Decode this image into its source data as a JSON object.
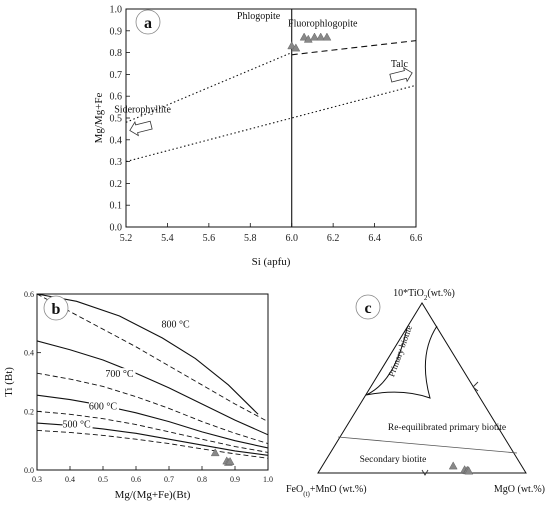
{
  "chart_data": [
    {
      "panel": "a",
      "type": "scatter",
      "xlabel": "Si (apfu)",
      "ylabel": "Mg/Mg+Fe",
      "xlim": [
        5.2,
        6.6
      ],
      "ylim": [
        0.0,
        1.0
      ],
      "xticks": [
        "5.2",
        "5.4",
        "5.6",
        "5.8",
        "6.0",
        "6.2",
        "6.4",
        "6.6"
      ],
      "yticks": [
        "0.0",
        "0.1",
        "0.2",
        "0.3",
        "0.4",
        "0.5",
        "0.6",
        "0.7",
        "0.8",
        "0.9",
        "1.0"
      ],
      "points": [
        {
          "x": 6.0,
          "y": 0.83
        },
        {
          "x": 6.02,
          "y": 0.82
        },
        {
          "x": 6.06,
          "y": 0.87
        },
        {
          "x": 6.08,
          "y": 0.86
        },
        {
          "x": 6.11,
          "y": 0.87
        },
        {
          "x": 6.14,
          "y": 0.87
        },
        {
          "x": 6.17,
          "y": 0.87
        }
      ],
      "lines": [
        {
          "style": "dashed",
          "x": [
            6.0,
            6.6
          ],
          "y": [
            0.79,
            0.855
          ]
        },
        {
          "style": "dotted",
          "x": [
            5.2,
            6.0
          ],
          "y": [
            0.48,
            0.8
          ]
        },
        {
          "style": "dotted",
          "x": [
            5.2,
            6.6
          ],
          "y": [
            0.3,
            0.65
          ]
        },
        {
          "style": "solid",
          "x": [
            6.0,
            6.0
          ],
          "y": [
            0.0,
            1.0
          ]
        }
      ],
      "annotations": [
        {
          "text": "Phlogopite",
          "x": 5.84,
          "y": 0.955
        },
        {
          "text": "Fluorophlogopite",
          "x": 6.15,
          "y": 0.92
        },
        {
          "text": "Talc",
          "x": 6.52,
          "y": 0.735
        },
        {
          "text": "Siderophyllite",
          "x": 5.28,
          "y": 0.525
        }
      ],
      "arrows": [
        {
          "dir": "down-left",
          "x": 5.27,
          "y": 0.455
        },
        {
          "dir": "up-right",
          "x": 6.53,
          "y": 0.695
        }
      ]
    },
    {
      "panel": "b",
      "type": "scatter",
      "xlabel": "Mg/(Mg+Fe)(Bt)",
      "ylabel": "Ti (Bt)",
      "xlim": [
        0.3,
        1.0
      ],
      "ylim": [
        0.0,
        0.6
      ],
      "xticks": [
        "0.3",
        "0.4",
        "0.5",
        "0.6",
        "0.7",
        "0.8",
        "0.9",
        "1.0"
      ],
      "yticks": [
        "0.0",
        "0.2",
        "0.4",
        "0.6"
      ],
      "points": [
        {
          "x": 0.84,
          "y": 0.058
        },
        {
          "x": 0.875,
          "y": 0.03
        },
        {
          "x": 0.88,
          "y": 0.025
        },
        {
          "x": 0.885,
          "y": 0.028
        }
      ],
      "isotherms": [
        {
          "label": "800 °C",
          "style": "solid",
          "x": [
            0.3,
            0.42,
            0.55,
            0.68,
            0.78,
            0.88,
            0.97
          ],
          "y": [
            0.6,
            0.575,
            0.525,
            0.45,
            0.38,
            0.29,
            0.19
          ]
        },
        {
          "label": "",
          "style": "dashed",
          "x": [
            0.3,
            0.4,
            0.5,
            0.6,
            0.7,
            0.8,
            0.9,
            1.0
          ],
          "y": [
            0.6,
            0.54,
            0.48,
            0.42,
            0.355,
            0.29,
            0.225,
            0.165
          ]
        },
        {
          "label": "700 °C",
          "style": "solid",
          "x": [
            0.3,
            0.4,
            0.5,
            0.6,
            0.7,
            0.8,
            0.9,
            1.0
          ],
          "y": [
            0.44,
            0.41,
            0.375,
            0.33,
            0.28,
            0.225,
            0.17,
            0.12
          ]
        },
        {
          "label": "",
          "style": "dashed",
          "x": [
            0.3,
            0.4,
            0.5,
            0.6,
            0.7,
            0.8,
            0.9,
            1.0
          ],
          "y": [
            0.33,
            0.31,
            0.285,
            0.25,
            0.21,
            0.165,
            0.125,
            0.09
          ]
        },
        {
          "label": "600 °C",
          "style": "solid",
          "x": [
            0.3,
            0.4,
            0.5,
            0.6,
            0.7,
            0.8,
            0.9,
            1.0
          ],
          "y": [
            0.255,
            0.24,
            0.22,
            0.195,
            0.165,
            0.13,
            0.1,
            0.075
          ]
        },
        {
          "label": "",
          "style": "dashed",
          "x": [
            0.3,
            0.4,
            0.5,
            0.6,
            0.7,
            0.8,
            0.9,
            1.0
          ],
          "y": [
            0.2,
            0.19,
            0.175,
            0.155,
            0.13,
            0.105,
            0.08,
            0.06
          ]
        },
        {
          "label": "500 °C",
          "style": "solid",
          "x": [
            0.3,
            0.4,
            0.5,
            0.6,
            0.7,
            0.8,
            0.9,
            1.0
          ],
          "y": [
            0.16,
            0.152,
            0.14,
            0.125,
            0.105,
            0.085,
            0.065,
            0.05
          ]
        },
        {
          "label": "",
          "style": "dashed",
          "x": [
            0.3,
            0.4,
            0.5,
            0.6,
            0.7,
            0.8,
            0.9,
            1.0
          ],
          "y": [
            0.135,
            0.128,
            0.118,
            0.105,
            0.09,
            0.072,
            0.055,
            0.04
          ]
        }
      ],
      "isotherm_label_positions": [
        {
          "label": "800 °C",
          "x": 0.72,
          "y": 0.49
        },
        {
          "label": "700 °C",
          "x": 0.55,
          "y": 0.32
        },
        {
          "label": "600 °C",
          "x": 0.5,
          "y": 0.21
        },
        {
          "label": "500 °C",
          "x": 0.42,
          "y": 0.148
        }
      ]
    },
    {
      "panel": "c",
      "type": "scatter",
      "vertices": {
        "top": "10*TiO",
        "top_sub": "2",
        "top_unit": "(wt.%)",
        "left": "FeO",
        "left_sub": "(t)",
        "left_unit": "+MnO (wt.%)",
        "right": "MgO (wt.%)"
      },
      "fields": [
        "Primary biotite",
        "Re-equilibrated primary biotite",
        "Secondary biotite"
      ],
      "ternary_points": [
        {
          "ti": 0.04,
          "fe": 0.33,
          "mg": 0.63
        },
        {
          "ti": 0.018,
          "fe": 0.286,
          "mg": 0.696
        },
        {
          "ti": 0.012,
          "fe": 0.278,
          "mg": 0.71
        },
        {
          "ti": 0.015,
          "fe": 0.272,
          "mg": 0.713
        },
        {
          "ti": 0.01,
          "fe": 0.27,
          "mg": 0.72
        }
      ]
    }
  ]
}
